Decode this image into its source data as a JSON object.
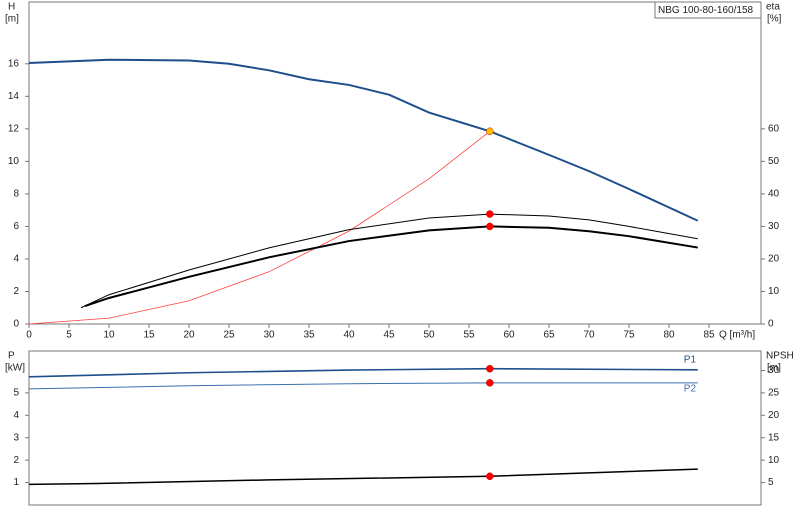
{
  "chart_data": [
    {
      "type": "line",
      "title": "NBG 100-80-160/158",
      "y_label": "H",
      "y_unit": "[m]",
      "y2_label": "eta",
      "y2_unit": "[%]",
      "x_label": "Q [m³/h]",
      "xlim": [
        0,
        91.5
      ],
      "ylim": [
        0,
        19.8
      ],
      "y2lim": [
        0,
        99
      ],
      "xticks": [
        0,
        5,
        10,
        15,
        20,
        25,
        30,
        35,
        40,
        45,
        50,
        55,
        60,
        65,
        70,
        75,
        80,
        85
      ],
      "yticks": [
        0,
        2,
        4,
        6,
        8,
        10,
        12,
        14,
        16
      ],
      "y2ticks": [
        0,
        10,
        20,
        30,
        40,
        50,
        60
      ],
      "series": [
        {
          "color": "#1f4e8c",
          "line_width": 2,
          "axis": "y",
          "x": [
            0,
            10,
            20,
            25,
            30,
            35,
            40,
            45,
            50,
            57.6,
            65,
            70,
            75,
            83.6
          ],
          "values": [
            16.05,
            16.25,
            16.2,
            16.0,
            15.6,
            15.05,
            14.7,
            14.1,
            13.0,
            11.85,
            10.4,
            9.4,
            8.3,
            6.35
          ]
        },
        {
          "color": "#ff4040",
          "line_width": 0.8,
          "axis": "y",
          "x": [
            0,
            10,
            20,
            30,
            40,
            50,
            57.6
          ],
          "values": [
            0,
            0.36,
            1.43,
            3.21,
            5.71,
            8.93,
            11.85
          ]
        },
        {
          "color": "#000000",
          "line_width": 1,
          "axis": "y2",
          "x": [
            6.5,
            10,
            20,
            30,
            40,
            50,
            57.6,
            65,
            70,
            75,
            83.6
          ],
          "values": [
            5,
            9,
            16.6,
            23.4,
            29,
            32.6,
            33.8,
            33.2,
            32,
            30,
            26.2
          ]
        },
        {
          "color": "#000000",
          "line_width": 2,
          "axis": "y2",
          "x": [
            7,
            10,
            20,
            30,
            40,
            50,
            57.6,
            65,
            70,
            75,
            83.6
          ],
          "values": [
            5.5,
            8,
            14.5,
            20.5,
            25.5,
            28.8,
            30,
            29.6,
            28.5,
            27,
            23.5
          ]
        }
      ],
      "duty_points": [
        {
          "x": 57.6,
          "y": 11.85,
          "color": "#ffc000",
          "axis": "y"
        },
        {
          "x": 57.6,
          "y": 33.8,
          "color": "#ff0000",
          "axis": "y2"
        },
        {
          "x": 57.6,
          "y": 30,
          "color": "#ff0000",
          "axis": "y2"
        }
      ]
    },
    {
      "type": "line",
      "y_label": "P",
      "y_unit": "[kW]",
      "y2_label": "NPSH",
      "y2_unit": "[m]",
      "xlim": [
        0,
        91.5
      ],
      "ylim": [
        0,
        6.87
      ],
      "y2lim": [
        0,
        34.35
      ],
      "yticks": [
        1,
        2,
        3,
        4,
        5
      ],
      "y2ticks": [
        5,
        10,
        15,
        20,
        25,
        30
      ],
      "series": [
        {
          "name": "P1",
          "color": "#1f4e8c",
          "line_width": 1.6,
          "axis": "y",
          "x": [
            0,
            20,
            40,
            57.6,
            83.6
          ],
          "values": [
            5.72,
            5.9,
            6.02,
            6.08,
            6.03
          ]
        },
        {
          "name": "P2",
          "color": "#3a6fb0",
          "line_width": 1,
          "axis": "y",
          "x": [
            0,
            20,
            40,
            57.6,
            83.6
          ],
          "values": [
            5.18,
            5.32,
            5.41,
            5.45,
            5.45
          ]
        },
        {
          "color": "#000000",
          "line_width": 1.5,
          "axis": "y2",
          "x": [
            0,
            8.5,
            30,
            57.6,
            83.6
          ],
          "values": [
            4.6,
            4.8,
            5.6,
            6.4,
            8.0
          ]
        }
      ],
      "duty_points": [
        {
          "x": 57.6,
          "y": 6.08,
          "color": "#ff0000",
          "axis": "y"
        },
        {
          "x": 57.6,
          "y": 5.45,
          "color": "#ff0000",
          "axis": "y"
        },
        {
          "x": 57.6,
          "y": 6.4,
          "color": "#ff0000",
          "axis": "y2"
        }
      ]
    }
  ]
}
